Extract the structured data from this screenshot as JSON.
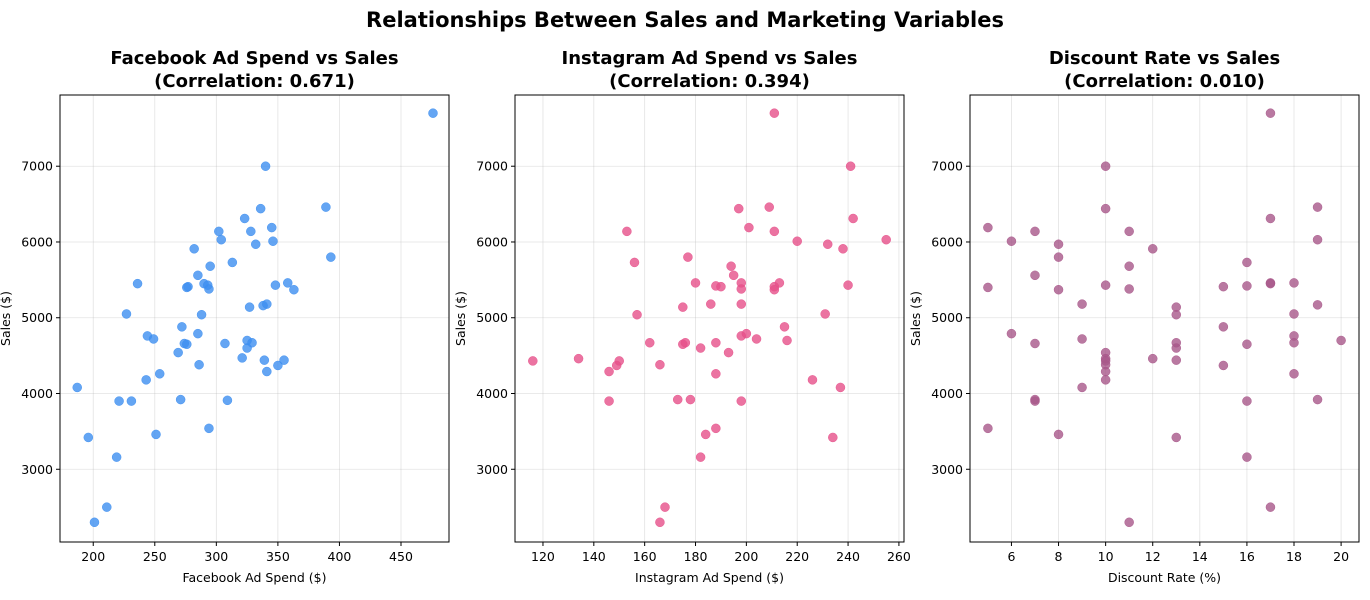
{
  "suptitle": "Relationships Between Sales and Marketing Variables",
  "chart_data": [
    {
      "type": "scatter",
      "title_line1": "Facebook Ad Spend vs Sales",
      "title_line2": "(Correlation: 0.671)",
      "xlabel": "Facebook Ad Spend ($)",
      "ylabel": "Sales ($)",
      "xlim": [
        173,
        489
      ],
      "ylim": [
        2040,
        7940
      ],
      "xticks": [
        200,
        250,
        300,
        350,
        400,
        450
      ],
      "yticks": [
        3000,
        4000,
        5000,
        6000,
        7000
      ],
      "grid": true,
      "color": "#3d8ef0",
      "points": [
        [
          187,
          4080
        ],
        [
          196,
          3420
        ],
        [
          201,
          2300
        ],
        [
          211,
          2500
        ],
        [
          219,
          3160
        ],
        [
          221,
          3900
        ],
        [
          227,
          5050
        ],
        [
          231,
          3900
        ],
        [
          236,
          5450
        ],
        [
          243,
          4180
        ],
        [
          244,
          4760
        ],
        [
          249,
          4720
        ],
        [
          251,
          3460
        ],
        [
          254,
          4260
        ],
        [
          269,
          4540
        ],
        [
          271,
          3920
        ],
        [
          272,
          4880
        ],
        [
          274,
          4660
        ],
        [
          276,
          4650
        ],
        [
          276,
          5400
        ],
        [
          277,
          5410
        ],
        [
          282,
          5910
        ],
        [
          285,
          5560
        ],
        [
          285,
          4790
        ],
        [
          286,
          4380
        ],
        [
          288,
          5040
        ],
        [
          290,
          5450
        ],
        [
          293,
          5430
        ],
        [
          294,
          5380
        ],
        [
          294,
          3540
        ],
        [
          295,
          5680
        ],
        [
          302,
          6140
        ],
        [
          304,
          6030
        ],
        [
          307,
          4660
        ],
        [
          309,
          3910
        ],
        [
          313,
          5730
        ],
        [
          321,
          4470
        ],
        [
          323,
          6310
        ],
        [
          325,
          4700
        ],
        [
          325,
          4600
        ],
        [
          327,
          5140
        ],
        [
          328,
          6140
        ],
        [
          329,
          4670
        ],
        [
          332,
          5970
        ],
        [
          336,
          6440
        ],
        [
          338,
          5160
        ],
        [
          339,
          4440
        ],
        [
          340,
          7000
        ],
        [
          341,
          5180
        ],
        [
          341,
          4290
        ],
        [
          345,
          6190
        ],
        [
          346,
          6010
        ],
        [
          348,
          5430
        ],
        [
          350,
          4370
        ],
        [
          355,
          4440
        ],
        [
          358,
          5460
        ],
        [
          363,
          5370
        ],
        [
          389,
          6460
        ],
        [
          393,
          5800
        ],
        [
          476,
          7700
        ]
      ]
    },
    {
      "type": "scatter",
      "title_line1": "Instagram Ad Spend vs Sales",
      "title_line2": "(Correlation: 0.394)",
      "xlabel": "Instagram Ad Spend ($)",
      "ylabel": "Sales ($)",
      "xlim": [
        109,
        262
      ],
      "ylim": [
        2040,
        7940
      ],
      "xticks": [
        120,
        140,
        160,
        180,
        200,
        220,
        240,
        260
      ],
      "yticks": [
        3000,
        4000,
        5000,
        6000,
        7000
      ],
      "grid": true,
      "color": "#e6508a",
      "points": [
        [
          116,
          4430
        ],
        [
          134,
          4460
        ],
        [
          146,
          3900
        ],
        [
          146,
          4290
        ],
        [
          149,
          4370
        ],
        [
          150,
          4430
        ],
        [
          153,
          6140
        ],
        [
          156,
          5730
        ],
        [
          157,
          5040
        ],
        [
          162,
          4670
        ],
        [
          166,
          4380
        ],
        [
          166,
          2300
        ],
        [
          168,
          2500
        ],
        [
          173,
          3920
        ],
        [
          175,
          5140
        ],
        [
          175,
          4650
        ],
        [
          176,
          4670
        ],
        [
          177,
          5800
        ],
        [
          178,
          3920
        ],
        [
          180,
          5460
        ],
        [
          182,
          3160
        ],
        [
          182,
          4600
        ],
        [
          184,
          3460
        ],
        [
          186,
          5180
        ],
        [
          188,
          5420
        ],
        [
          188,
          4670
        ],
        [
          188,
          4260
        ],
        [
          188,
          3540
        ],
        [
          190,
          5410
        ],
        [
          193,
          4540
        ],
        [
          194,
          5680
        ],
        [
          195,
          5560
        ],
        [
          197,
          6440
        ],
        [
          198,
          5460
        ],
        [
          198,
          5380
        ],
        [
          198,
          5180
        ],
        [
          198,
          4760
        ],
        [
          198,
          3900
        ],
        [
          200,
          4790
        ],
        [
          201,
          6190
        ],
        [
          204,
          4720
        ],
        [
          209,
          6460
        ],
        [
          211,
          7700
        ],
        [
          211,
          6140
        ],
        [
          211,
          5410
        ],
        [
          211,
          5370
        ],
        [
          213,
          5460
        ],
        [
          215,
          4880
        ],
        [
          216,
          4700
        ],
        [
          220,
          6010
        ],
        [
          226,
          4180
        ],
        [
          231,
          5050
        ],
        [
          232,
          5970
        ],
        [
          234,
          3420
        ],
        [
          237,
          4080
        ],
        [
          238,
          5910
        ],
        [
          240,
          5430
        ],
        [
          241,
          7000
        ],
        [
          242,
          6310
        ],
        [
          255,
          6030
        ]
      ]
    },
    {
      "type": "scatter",
      "title_line1": "Discount Rate vs Sales",
      "title_line2": "(Correlation: 0.010)",
      "xlabel": "Discount Rate (%)",
      "ylabel": "Sales ($)",
      "xlim": [
        4.24,
        20.76
      ],
      "ylim": [
        2040,
        7940
      ],
      "xticks": [
        6,
        8,
        10,
        12,
        14,
        16,
        18,
        20
      ],
      "yticks": [
        3000,
        4000,
        5000,
        6000,
        7000
      ],
      "grid": true,
      "color": "#a8578a",
      "points": [
        [
          5,
          6190
        ],
        [
          5,
          5400
        ],
        [
          5,
          3540
        ],
        [
          6,
          6010
        ],
        [
          6,
          4790
        ],
        [
          7,
          6140
        ],
        [
          7,
          5560
        ],
        [
          7,
          4660
        ],
        [
          7,
          3920
        ],
        [
          7,
          3900
        ],
        [
          8,
          5970
        ],
        [
          8,
          5800
        ],
        [
          8,
          5370
        ],
        [
          8,
          3460
        ],
        [
          9,
          5180
        ],
        [
          9,
          4720
        ],
        [
          9,
          4080
        ],
        [
          10,
          7000
        ],
        [
          10,
          6440
        ],
        [
          10,
          5430
        ],
        [
          10,
          4540
        ],
        [
          10,
          4460
        ],
        [
          10,
          4430
        ],
        [
          10,
          4380
        ],
        [
          10,
          4290
        ],
        [
          10,
          4180
        ],
        [
          11,
          6140
        ],
        [
          11,
          5680
        ],
        [
          11,
          5380
        ],
        [
          11,
          2300
        ],
        [
          12,
          5910
        ],
        [
          12,
          4460
        ],
        [
          13,
          5140
        ],
        [
          13,
          5040
        ],
        [
          13,
          4670
        ],
        [
          13,
          4600
        ],
        [
          13,
          4440
        ],
        [
          13,
          3420
        ],
        [
          15,
          5410
        ],
        [
          15,
          4880
        ],
        [
          15,
          4370
        ],
        [
          16,
          5730
        ],
        [
          16,
          5420
        ],
        [
          16,
          4650
        ],
        [
          16,
          3900
        ],
        [
          16,
          3160
        ],
        [
          17,
          7700
        ],
        [
          17,
          6310
        ],
        [
          17,
          5460
        ],
        [
          17,
          5450
        ],
        [
          17,
          2500
        ],
        [
          18,
          5460
        ],
        [
          18,
          5050
        ],
        [
          18,
          4760
        ],
        [
          18,
          4670
        ],
        [
          18,
          4260
        ],
        [
          19,
          6460
        ],
        [
          19,
          6030
        ],
        [
          19,
          5170
        ],
        [
          19,
          3920
        ],
        [
          20,
          4700
        ]
      ]
    }
  ]
}
